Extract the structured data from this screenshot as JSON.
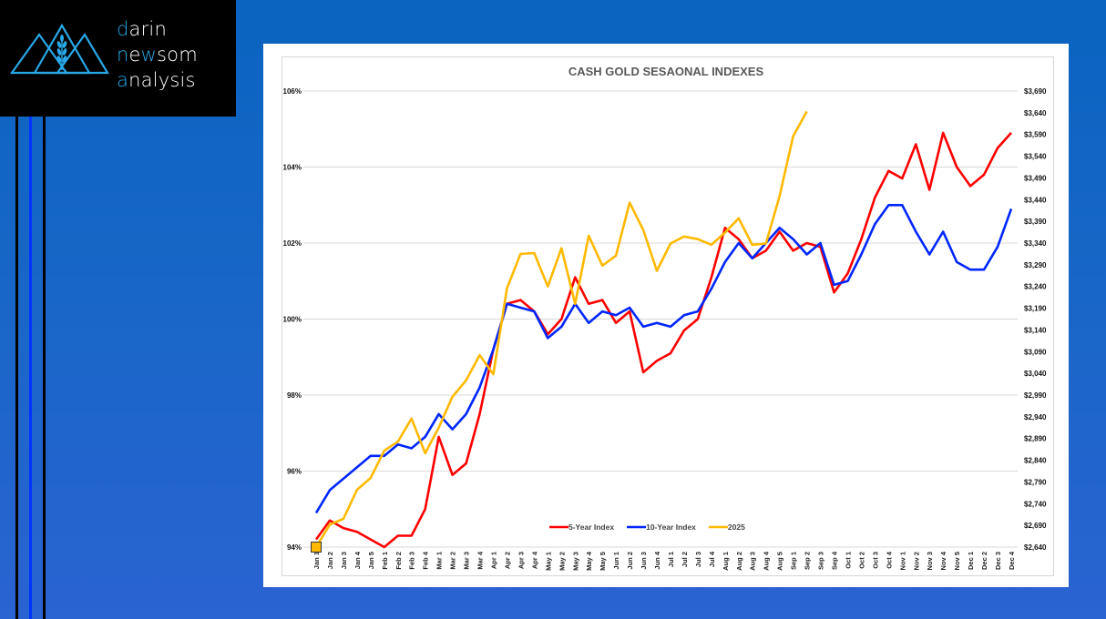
{
  "branding": {
    "line1_first": "d",
    "line1_rest": "arin",
    "line2_first": "n",
    "line2_mid_pre": "e",
    "line2_hl": "w",
    "line2_rest": "som",
    "line3_first": "a",
    "line3_rest": "nalysis",
    "logo_icon": "mountains-wheat-icon",
    "accent_color": "#29a8e8"
  },
  "chart_data": {
    "type": "line",
    "title": "CASH GOLD SESAONAL INDEXES",
    "xlabel": "",
    "ylabel": "",
    "y_left": {
      "ticks": [
        "106%",
        "104%",
        "102%",
        "100%",
        "98%",
        "96%",
        "94%"
      ],
      "range": [
        94,
        106
      ],
      "tick_values": [
        106,
        104,
        102,
        100,
        98,
        96,
        94
      ]
    },
    "y_right": {
      "ticks": [
        "$3,690",
        "$3,640",
        "$3,590",
        "$3,540",
        "$3,490",
        "$3,440",
        "$3,390",
        "$3,340",
        "$3,290",
        "$3,240",
        "$3,190",
        "$3,140",
        "$3,090",
        "$3,040",
        "$2,990",
        "$2,940",
        "$2,890",
        "$2,840",
        "$2,790",
        "$2,740",
        "$2,690",
        "$2,640"
      ],
      "range": [
        2640,
        3690
      ]
    },
    "grid": true,
    "legend_position": "bottom-center",
    "categories": [
      "Jan 1",
      "Jan 2",
      "Jan 3",
      "Jan 4",
      "Jan 5",
      "Feb 1",
      "Feb 2",
      "Feb 3",
      "Feb 4",
      "Mar 1",
      "Mar 2",
      "Mar 3",
      "Mar 4",
      "Apr 1",
      "Apr 2",
      "Apr 3",
      "Apr 4",
      "May 1",
      "May 2",
      "May 3",
      "May 4",
      "May 5",
      "Jun 1",
      "Jun 2",
      "Jun 3",
      "Jun 4",
      "Jul 1",
      "Jul 2",
      "Jul 3",
      "Jul 4",
      "Aug 1",
      "Aug 2",
      "Aug 3",
      "Aug 4",
      "Aug 5",
      "Sep 1",
      "Sep 2",
      "Sep 3",
      "Sep 4",
      "Oct 1",
      "Oct 2",
      "Oct 3",
      "Oct 4",
      "Nov 1",
      "Nov 2",
      "Nov 3",
      "Nov 4",
      "Nov 5",
      "Dec 1",
      "Dec 2",
      "Dec 3",
      "Dec 4"
    ],
    "series": [
      {
        "name": "5-Year Index",
        "axis": "left",
        "color": "#ff0000",
        "values": [
          94.2,
          94.7,
          94.5,
          94.4,
          94.2,
          94.0,
          94.3,
          94.3,
          95.0,
          96.9,
          95.9,
          96.2,
          97.5,
          99.2,
          100.4,
          100.5,
          100.2,
          99.6,
          100.0,
          101.1,
          100.4,
          100.5,
          99.9,
          100.2,
          98.6,
          98.9,
          99.1,
          99.7,
          100.0,
          101.1,
          102.4,
          102.1,
          101.6,
          101.8,
          102.3,
          101.8,
          102.0,
          101.9,
          100.7,
          101.2,
          102.1,
          103.2,
          103.9,
          103.7,
          104.6,
          103.4,
          104.9,
          104.0,
          103.5,
          103.8,
          104.5,
          104.9
        ]
      },
      {
        "name": "10-Year Index",
        "axis": "left",
        "color": "#0026ff",
        "values": [
          94.9,
          95.5,
          95.8,
          96.1,
          96.4,
          96.4,
          96.7,
          96.6,
          96.9,
          97.5,
          97.1,
          97.5,
          98.2,
          99.2,
          100.4,
          100.3,
          100.2,
          99.5,
          99.8,
          100.4,
          99.9,
          100.2,
          100.1,
          100.3,
          99.8,
          99.9,
          99.8,
          100.1,
          100.2,
          100.8,
          101.5,
          102.0,
          101.6,
          102.0,
          102.4,
          102.1,
          101.7,
          102.0,
          100.9,
          101.0,
          101.7,
          102.5,
          103.0,
          103.0,
          102.3,
          101.7,
          102.3,
          101.5,
          101.3,
          101.3,
          101.9,
          102.9
        ]
      },
      {
        "name": "2025",
        "axis": "right",
        "color": "#ffb900",
        "values": [
          2640,
          2692,
          2705,
          2772,
          2799,
          2862,
          2883,
          2936,
          2856,
          2915,
          2986,
          3024,
          3082,
          3038,
          3236,
          3315,
          3317,
          3240,
          3328,
          3200,
          3357,
          3288,
          3311,
          3433,
          3370,
          3276,
          3339,
          3355,
          3349,
          3336,
          3364,
          3397,
          3336,
          3339,
          3448,
          3586,
          3643
        ]
      }
    ],
    "start_marker": {
      "category": "Jan 1",
      "shape": "square",
      "color": "#ffb900"
    }
  }
}
